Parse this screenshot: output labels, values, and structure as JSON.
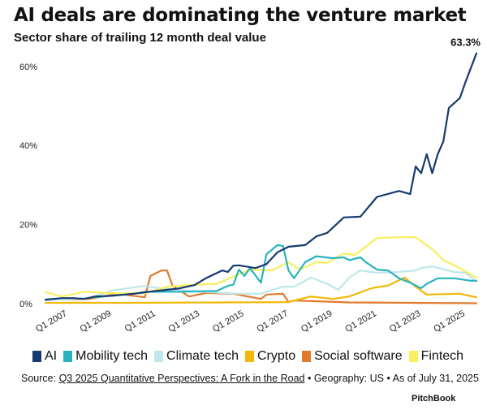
{
  "title": "AI deals are dominating the venture market",
  "subtitle": "Sector share of trailing 12 month deal value",
  "source": {
    "prefix": "Source: ",
    "link": "Q3 2025 Quantitative Perspectives: A Fork in the Road",
    "suffix": " • Geography: US • As of July 31, 2025"
  },
  "brand": "PitchBook",
  "chart_data": {
    "type": "line",
    "title": "AI deals are dominating the venture market",
    "subtitle": "Sector share of trailing 12 month deal value",
    "xlabel": "",
    "ylabel": "",
    "xlim": [
      "Q1 2006",
      "Q3 2025"
    ],
    "ylim": [
      0,
      63.3
    ],
    "y_ticks": [
      0,
      20,
      40,
      60
    ],
    "y_tick_labels": [
      "0%",
      "20%",
      "40%",
      "60%"
    ],
    "x_ticks": [
      "Q1 2007",
      "Q1 2009",
      "Q1 2011",
      "Q1 2013",
      "Q1 2015",
      "Q1 2017",
      "Q1 2019",
      "Q1 2021",
      "Q1 2023",
      "Q1 2025"
    ],
    "grid": false,
    "legend_position": "bottom",
    "annotations": [
      {
        "series": "AI",
        "x": "Q3 2025",
        "y": 63.3,
        "text": "63.3%"
      }
    ],
    "series": [
      {
        "name": "AI",
        "color": "#173a70",
        "points": [
          [
            "Q1 2006",
            1.0
          ],
          [
            "Q4 2006",
            1.4
          ],
          [
            "Q2 2007",
            1.4
          ],
          [
            "Q4 2007",
            1.2
          ],
          [
            "Q2 2008",
            1.8
          ],
          [
            "Q1 2009",
            2.0
          ],
          [
            "Q1 2010",
            2.5
          ],
          [
            "Q1 2011",
            3.2
          ],
          [
            "Q1 2012",
            3.8
          ],
          [
            "Q4 2012",
            4.7
          ],
          [
            "Q2 2013",
            6.4
          ],
          [
            "Q1 2014",
            8.4
          ],
          [
            "Q2 2014",
            8.0
          ],
          [
            "Q3 2014",
            9.6
          ],
          [
            "Q4 2014",
            9.7
          ],
          [
            "Q3 2015",
            9.0
          ],
          [
            "Q1 2016",
            10.0
          ],
          [
            "Q3 2016",
            13.0
          ],
          [
            "Q1 2017",
            14.4
          ],
          [
            "Q4 2017",
            14.8
          ],
          [
            "Q2 2018",
            17.0
          ],
          [
            "Q4 2018",
            17.9
          ],
          [
            "Q3 2019",
            21.8
          ],
          [
            "Q2 2020",
            22.0
          ],
          [
            "Q1 2021",
            27.0
          ],
          [
            "Q1 2022",
            28.5
          ],
          [
            "Q3 2022",
            27.7
          ],
          [
            "Q4 2022",
            34.7
          ],
          [
            "Q1 2023",
            33.0
          ],
          [
            "Q2 2023",
            37.8
          ],
          [
            "Q3 2023",
            33.0
          ],
          [
            "Q4 2023",
            37.8
          ],
          [
            "Q1 2024",
            41.0
          ],
          [
            "Q2 2024",
            49.5
          ],
          [
            "Q4 2024",
            52.0
          ],
          [
            "Q1 2025",
            56.0
          ],
          [
            "Q3 2025",
            63.3
          ]
        ]
      },
      {
        "name": "Mobility tech",
        "color": "#2ab3bf",
        "points": [
          [
            "Q1 2008",
            1.5
          ],
          [
            "Q1 2010",
            2.5
          ],
          [
            "Q3 2010",
            3.0
          ],
          [
            "Q1 2012",
            3.0
          ],
          [
            "Q4 2013",
            3.2
          ],
          [
            "Q2 2014",
            4.5
          ],
          [
            "Q3 2014",
            4.8
          ],
          [
            "Q4 2014",
            8.6
          ],
          [
            "Q1 2015",
            7.0
          ],
          [
            "Q2 2015",
            9.0
          ],
          [
            "Q4 2015",
            5.3
          ],
          [
            "Q1 2016",
            12.5
          ],
          [
            "Q3 2016",
            14.8
          ],
          [
            "Q4 2016",
            14.6
          ],
          [
            "Q1 2017",
            8.4
          ],
          [
            "Q2 2017",
            6.4
          ],
          [
            "Q4 2017",
            10.5
          ],
          [
            "Q2 2018",
            12.0
          ],
          [
            "Q1 2019",
            11.5
          ],
          [
            "Q3 2019",
            11.7
          ],
          [
            "Q4 2019",
            11.0
          ],
          [
            "Q2 2020",
            11.7
          ],
          [
            "Q3 2020",
            10.5
          ],
          [
            "Q1 2021",
            8.6
          ],
          [
            "Q3 2021",
            8.4
          ],
          [
            "Q1 2022",
            6.4
          ],
          [
            "Q3 2022",
            5.3
          ],
          [
            "Q1 2023",
            3.9
          ],
          [
            "Q2 2023",
            5.0
          ],
          [
            "Q4 2023",
            6.4
          ],
          [
            "Q3 2024",
            6.4
          ],
          [
            "Q2 2025",
            5.8
          ],
          [
            "Q3 2025",
            5.8
          ]
        ]
      },
      {
        "name": "Climate tech",
        "color": "#bfe7ea",
        "points": [
          [
            "Q1 2006",
            0.8
          ],
          [
            "Q1 2008",
            1.5
          ],
          [
            "Q1 2009",
            3.3
          ],
          [
            "Q3 2010",
            4.5
          ],
          [
            "Q1 2011",
            4.0
          ],
          [
            "Q1 2012",
            3.5
          ],
          [
            "Q1 2013",
            3.0
          ],
          [
            "Q4 2014",
            2.5
          ],
          [
            "Q4 2015",
            2.5
          ],
          [
            "Q4 2016",
            4.3
          ],
          [
            "Q2 2017",
            4.3
          ],
          [
            "Q1 2018",
            6.6
          ],
          [
            "Q4 2018",
            5.0
          ],
          [
            "Q2 2019",
            3.5
          ],
          [
            "Q4 2019",
            6.6
          ],
          [
            "Q2 2020",
            8.4
          ],
          [
            "Q1 2021",
            7.8
          ],
          [
            "Q1 2022",
            8.0
          ],
          [
            "Q4 2022",
            8.4
          ],
          [
            "Q1 2023",
            9.0
          ],
          [
            "Q3 2023",
            9.4
          ],
          [
            "Q3 2024",
            8.0
          ],
          [
            "Q1 2025",
            7.8
          ],
          [
            "Q3 2025",
            5.6
          ]
        ]
      },
      {
        "name": "Crypto",
        "color": "#f2b807",
        "points": [
          [
            "Q1 2006",
            0.2
          ],
          [
            "Q1 2010",
            0.2
          ],
          [
            "Q1 2014",
            0.3
          ],
          [
            "Q1 2017",
            0.4
          ],
          [
            "Q1 2018",
            1.8
          ],
          [
            "Q1 2019",
            1.2
          ],
          [
            "Q4 2019",
            1.8
          ],
          [
            "Q4 2020",
            3.9
          ],
          [
            "Q3 2021",
            4.6
          ],
          [
            "Q2 2022",
            6.6
          ],
          [
            "Q4 2022",
            4.3
          ],
          [
            "Q2 2023",
            2.3
          ],
          [
            "Q4 2024",
            2.5
          ],
          [
            "Q3 2025",
            1.6
          ]
        ]
      },
      {
        "name": "Social software",
        "color": "#e27a2c",
        "points": [
          [
            "Q1 2006",
            1.0
          ],
          [
            "Q1 2008",
            1.2
          ],
          [
            "Q2 2009",
            2.5
          ],
          [
            "Q3 2010",
            1.6
          ],
          [
            "Q4 2010",
            7.0
          ],
          [
            "Q2 2011",
            8.4
          ],
          [
            "Q3 2011",
            8.4
          ],
          [
            "Q4 2011",
            4.5
          ],
          [
            "Q3 2012",
            1.8
          ],
          [
            "Q2 2013",
            2.7
          ],
          [
            "Q3 2014",
            2.5
          ],
          [
            "Q4 2015",
            1.2
          ],
          [
            "Q1 2016",
            2.3
          ],
          [
            "Q4 2016",
            2.5
          ],
          [
            "Q1 2017",
            0.4
          ],
          [
            "Q2 2017",
            0.8
          ],
          [
            "Q4 2019",
            0.3
          ],
          [
            "Q3 2025",
            0.1
          ]
        ]
      },
      {
        "name": "Fintech",
        "color": "#f8ee5e",
        "points": [
          [
            "Q1 2006",
            2.9
          ],
          [
            "Q4 2006",
            1.8
          ],
          [
            "Q4 2007",
            3.0
          ],
          [
            "Q2 2009",
            2.6
          ],
          [
            "Q3 2010",
            2.6
          ],
          [
            "Q3 2011",
            4.3
          ],
          [
            "Q3 2012",
            4.7
          ],
          [
            "Q4 2013",
            5.0
          ],
          [
            "Q1 2015",
            8.0
          ],
          [
            "Q2 2015",
            8.6
          ],
          [
            "Q2 2016",
            8.4
          ],
          [
            "Q1 2017",
            10.5
          ],
          [
            "Q3 2017",
            8.6
          ],
          [
            "Q2 2018",
            10.5
          ],
          [
            "Q4 2018",
            10.3
          ],
          [
            "Q3 2019",
            12.7
          ],
          [
            "Q1 2020",
            12.3
          ],
          [
            "Q1 2021",
            16.6
          ],
          [
            "Q1 2022",
            16.8
          ],
          [
            "Q4 2022",
            16.8
          ],
          [
            "Q3 2023",
            13.8
          ],
          [
            "Q1 2024",
            11.0
          ],
          [
            "Q3 2024",
            9.7
          ],
          [
            "Q3 2025",
            6.6
          ]
        ]
      }
    ]
  }
}
